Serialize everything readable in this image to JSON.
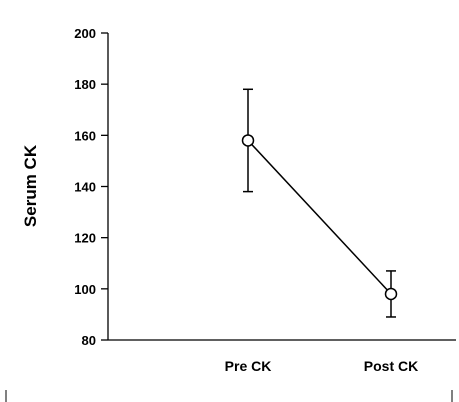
{
  "chart_data": {
    "type": "line",
    "title": "",
    "xlabel": "",
    "ylabel": "Serum CK",
    "categories": [
      "Pre CK",
      "Post CK"
    ],
    "ylim": [
      80,
      200
    ],
    "yticks": [
      80,
      100,
      120,
      140,
      160,
      180,
      200
    ],
    "grid": false,
    "legend": "none",
    "series": [
      {
        "values": [
          158,
          98
        ],
        "error_lower": [
          138,
          89
        ],
        "error_upper": [
          178,
          107
        ],
        "marker": "open-circle",
        "color": "#000000"
      }
    ]
  }
}
